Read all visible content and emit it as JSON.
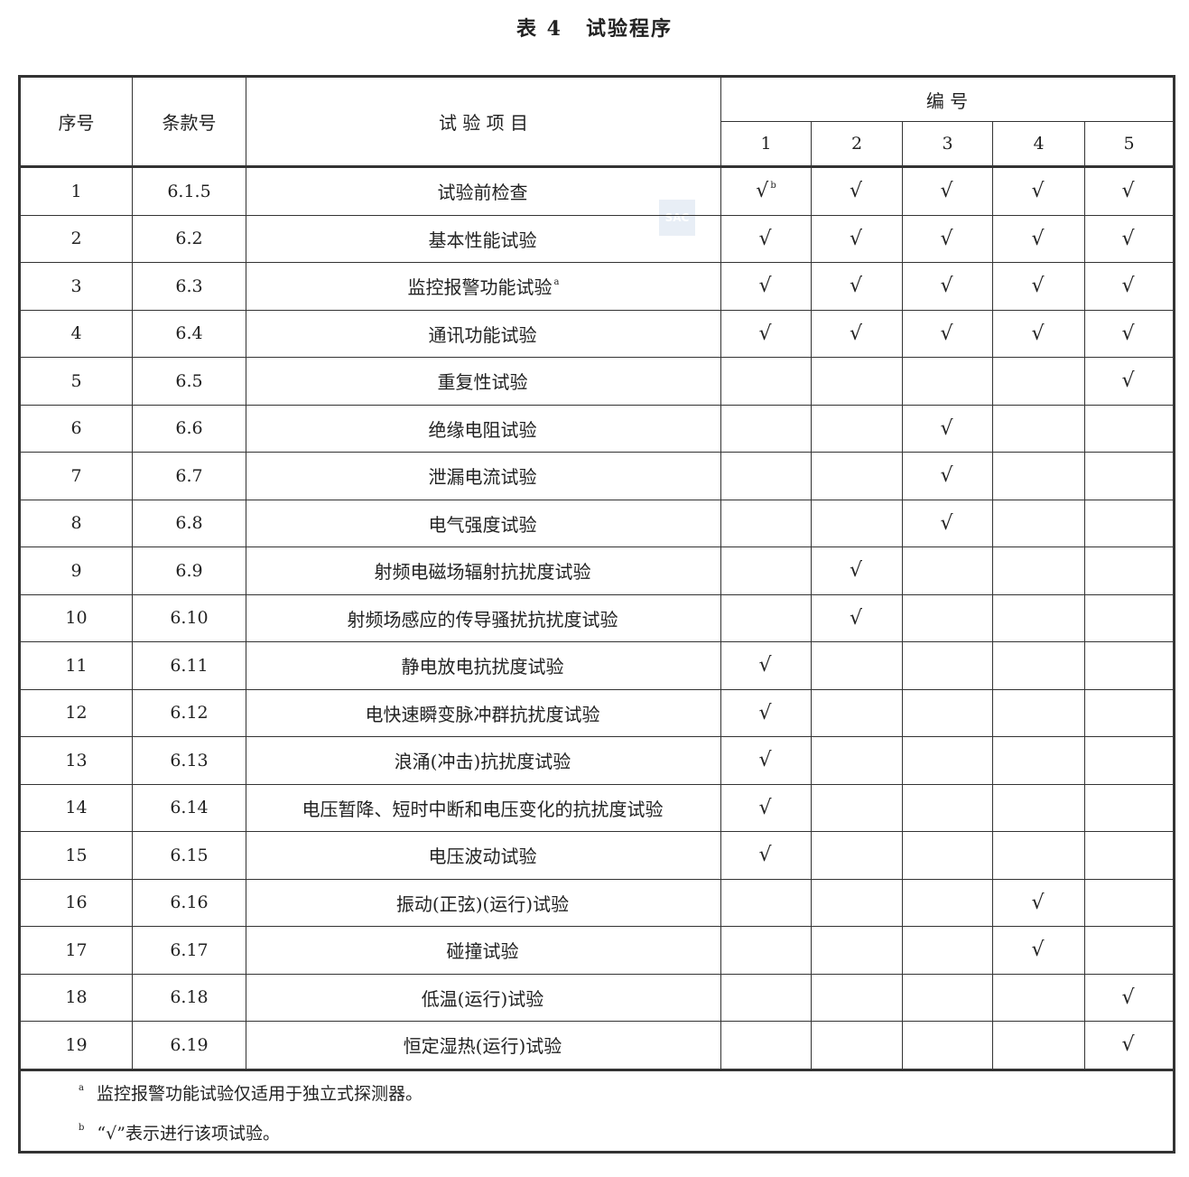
{
  "title": {
    "label": "表 4",
    "text": "试验程序"
  },
  "header": {
    "no": "序号",
    "clause": "条款号",
    "item": "试 验 项 目",
    "group": "编 号",
    "samples": [
      "1",
      "2",
      "3",
      "4",
      "5"
    ]
  },
  "watermark": "SAC",
  "rows": [
    {
      "no": "1",
      "clause": "6.1.5",
      "item": "试验前检查",
      "item_note": "",
      "checks": [
        "√",
        "√",
        "√",
        "√",
        "√"
      ],
      "check_notes": [
        "b",
        "",
        "",
        "",
        ""
      ]
    },
    {
      "no": "2",
      "clause": "6.2",
      "item": "基本性能试验",
      "item_note": "",
      "checks": [
        "√",
        "√",
        "√",
        "√",
        "√"
      ],
      "check_notes": [
        "",
        "",
        "",
        "",
        ""
      ]
    },
    {
      "no": "3",
      "clause": "6.3",
      "item": "监控报警功能试验",
      "item_note": "a",
      "checks": [
        "√",
        "√",
        "√",
        "√",
        "√"
      ],
      "check_notes": [
        "",
        "",
        "",
        "",
        ""
      ]
    },
    {
      "no": "4",
      "clause": "6.4",
      "item": "通讯功能试验",
      "item_note": "",
      "checks": [
        "√",
        "√",
        "√",
        "√",
        "√"
      ],
      "check_notes": [
        "",
        "",
        "",
        "",
        ""
      ]
    },
    {
      "no": "5",
      "clause": "6.5",
      "item": "重复性试验",
      "item_note": "",
      "checks": [
        "",
        "",
        "",
        "",
        "√"
      ],
      "check_notes": [
        "",
        "",
        "",
        "",
        ""
      ]
    },
    {
      "no": "6",
      "clause": "6.6",
      "item": "绝缘电阻试验",
      "item_note": "",
      "checks": [
        "",
        "",
        "√",
        "",
        ""
      ],
      "check_notes": [
        "",
        "",
        "",
        "",
        ""
      ]
    },
    {
      "no": "7",
      "clause": "6.7",
      "item": "泄漏电流试验",
      "item_note": "",
      "checks": [
        "",
        "",
        "√",
        "",
        ""
      ],
      "check_notes": [
        "",
        "",
        "",
        "",
        ""
      ]
    },
    {
      "no": "8",
      "clause": "6.8",
      "item": "电气强度试验",
      "item_note": "",
      "checks": [
        "",
        "",
        "√",
        "",
        ""
      ],
      "check_notes": [
        "",
        "",
        "",
        "",
        ""
      ]
    },
    {
      "no": "9",
      "clause": "6.9",
      "item": "射频电磁场辐射抗扰度试验",
      "item_note": "",
      "checks": [
        "",
        "√",
        "",
        "",
        ""
      ],
      "check_notes": [
        "",
        "",
        "",
        "",
        ""
      ]
    },
    {
      "no": "10",
      "clause": "6.10",
      "item": "射频场感应的传导骚扰抗扰度试验",
      "item_note": "",
      "checks": [
        "",
        "√",
        "",
        "",
        ""
      ],
      "check_notes": [
        "",
        "",
        "",
        "",
        ""
      ]
    },
    {
      "no": "11",
      "clause": "6.11",
      "item": "静电放电抗扰度试验",
      "item_note": "",
      "checks": [
        "√",
        "",
        "",
        "",
        ""
      ],
      "check_notes": [
        "",
        "",
        "",
        "",
        ""
      ]
    },
    {
      "no": "12",
      "clause": "6.12",
      "item": "电快速瞬变脉冲群抗扰度试验",
      "item_note": "",
      "checks": [
        "√",
        "",
        "",
        "",
        ""
      ],
      "check_notes": [
        "",
        "",
        "",
        "",
        ""
      ]
    },
    {
      "no": "13",
      "clause": "6.13",
      "item": "浪涌(冲击)抗扰度试验",
      "item_note": "",
      "checks": [
        "√",
        "",
        "",
        "",
        ""
      ],
      "check_notes": [
        "",
        "",
        "",
        "",
        ""
      ]
    },
    {
      "no": "14",
      "clause": "6.14",
      "item": "电压暂降、短时中断和电压变化的抗扰度试验",
      "item_note": "",
      "checks": [
        "√",
        "",
        "",
        "",
        ""
      ],
      "check_notes": [
        "",
        "",
        "",
        "",
        ""
      ]
    },
    {
      "no": "15",
      "clause": "6.15",
      "item": "电压波动试验",
      "item_note": "",
      "checks": [
        "√",
        "",
        "",
        "",
        ""
      ],
      "check_notes": [
        "",
        "",
        "",
        "",
        ""
      ]
    },
    {
      "no": "16",
      "clause": "6.16",
      "item": "振动(正弦)(运行)试验",
      "item_note": "",
      "checks": [
        "",
        "",
        "",
        "√",
        ""
      ],
      "check_notes": [
        "",
        "",
        "",
        "",
        ""
      ]
    },
    {
      "no": "17",
      "clause": "6.17",
      "item": "碰撞试验",
      "item_note": "",
      "checks": [
        "",
        "",
        "",
        "√",
        ""
      ],
      "check_notes": [
        "",
        "",
        "",
        "",
        ""
      ]
    },
    {
      "no": "18",
      "clause": "6.18",
      "item": "低温(运行)试验",
      "item_note": "",
      "checks": [
        "",
        "",
        "",
        "",
        "√"
      ],
      "check_notes": [
        "",
        "",
        "",
        "",
        ""
      ]
    },
    {
      "no": "19",
      "clause": "6.19",
      "item": "恒定湿热(运行)试验",
      "item_note": "",
      "checks": [
        "",
        "",
        "",
        "",
        "√"
      ],
      "check_notes": [
        "",
        "",
        "",
        "",
        ""
      ]
    }
  ],
  "footnotes": [
    {
      "mark": "a",
      "text": "监控报警功能试验仅适用于独立式探测器。"
    },
    {
      "mark": "b",
      "text": "“√”表示进行该项试验。"
    }
  ]
}
